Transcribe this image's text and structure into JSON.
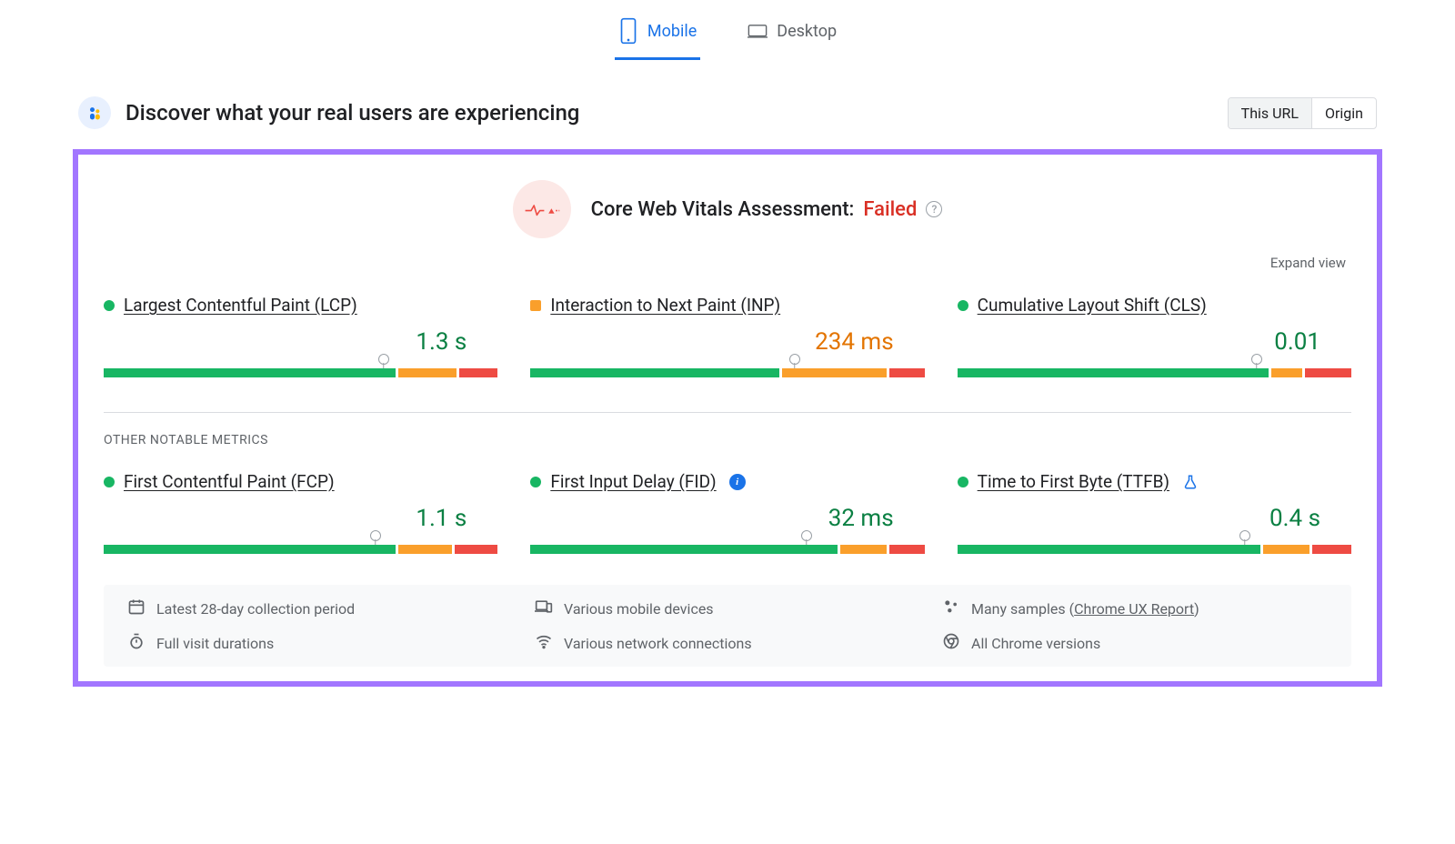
{
  "tabs": {
    "mobile": "Mobile",
    "desktop": "Desktop",
    "active": "mobile"
  },
  "header": {
    "title": "Discover what your real users are experiencing",
    "toggle": {
      "this_url": "This URL",
      "origin": "Origin",
      "active": "this_url"
    }
  },
  "assessment": {
    "label": "Core Web Vitals Assessment: ",
    "status": "Failed",
    "expand_label": "Expand view",
    "colors": {
      "badge_bg": "#fce8e6",
      "status_color": "#d93025",
      "line_color": "#ee4b43"
    }
  },
  "palette": {
    "good": "#18b663",
    "needs_improvement": "#fa9f2b",
    "poor": "#ee4b43",
    "value_good": "#0b8043",
    "value_ni": "#e37400",
    "highlight_border": "#a276ff"
  },
  "core_metrics": [
    {
      "id": "lcp",
      "name": "Largest Contentful Paint (LCP)",
      "value": "1.3 s",
      "status": "good",
      "marker_pct": 71,
      "segments": {
        "good": 75,
        "ni": 15,
        "poor": 10
      }
    },
    {
      "id": "inp",
      "name": "Interaction to Next Paint (INP)",
      "value": "234 ms",
      "status": "ni",
      "marker_pct": 67,
      "segments": {
        "good": 64,
        "ni": 27,
        "poor": 9
      }
    },
    {
      "id": "cls",
      "name": "Cumulative Layout Shift (CLS)",
      "value": "0.01",
      "status": "good",
      "marker_pct": 76,
      "segments": {
        "good": 80,
        "ni": 8,
        "poor": 12
      }
    }
  ],
  "other_label": "OTHER NOTABLE METRICS",
  "other_metrics": [
    {
      "id": "fcp",
      "name": "First Contentful Paint (FCP)",
      "value": "1.1 s",
      "status": "good",
      "marker_pct": 69,
      "segments": {
        "good": 75,
        "ni": 14,
        "poor": 11
      },
      "badge": null
    },
    {
      "id": "fid",
      "name": "First Input Delay (FID)",
      "value": "32 ms",
      "status": "good",
      "marker_pct": 70,
      "segments": {
        "good": 79,
        "ni": 12,
        "poor": 9
      },
      "badge": "info"
    },
    {
      "id": "ttfb",
      "name": "Time to First Byte (TTFB)",
      "value": "0.4 s",
      "status": "good",
      "marker_pct": 73,
      "segments": {
        "good": 78,
        "ni": 12,
        "poor": 10
      },
      "badge": "experimental"
    }
  ],
  "footer": {
    "items": [
      {
        "icon": "calendar",
        "text": "Latest 28-day collection period"
      },
      {
        "icon": "devices",
        "text": "Various mobile devices"
      },
      {
        "icon": "samples",
        "text_prefix": "Many samples (",
        "link": "Chrome UX Report",
        "text_suffix": ")"
      },
      {
        "icon": "timer",
        "text": "Full visit durations"
      },
      {
        "icon": "wifi",
        "text": "Various network connections"
      },
      {
        "icon": "chrome",
        "text": "All Chrome versions"
      }
    ]
  }
}
